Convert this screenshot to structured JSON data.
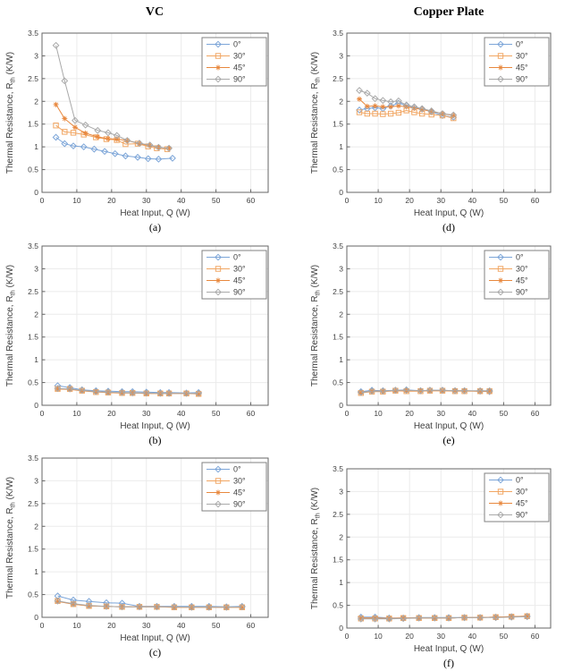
{
  "figure": {
    "background": "#ffffff",
    "columns": [
      {
        "title": "VC"
      },
      {
        "title": "Copper Plate"
      }
    ]
  },
  "styles": {
    "grid_color": "#ebebeb",
    "axis_color": "#666666",
    "text_color": "#3f3f3f",
    "legend_border_color": "#808080",
    "series_styles": [
      {
        "name": "0°",
        "color": "#7ca5d8",
        "marker": "diamond"
      },
      {
        "name": "30°",
        "color": "#f1a663",
        "marker": "square"
      },
      {
        "name": "45°",
        "color": "#e8883e",
        "marker": "asterisk"
      },
      {
        "name": "90°",
        "color": "#a9a9a9",
        "marker": "diamond"
      }
    ]
  },
  "chart_data": [
    {
      "id": "a",
      "label": "(a)",
      "group": "VC",
      "row": 0,
      "col": 0,
      "type": "line",
      "xlabel": "Heat Input, Q (W)",
      "ylabel_parts": {
        "pre": "Thermal Resistance, R",
        "sub": "th",
        "post": " (K/W)"
      },
      "xlim": [
        0,
        65
      ],
      "ylim": [
        0,
        3.5
      ],
      "xticks": [
        0,
        10,
        20,
        30,
        40,
        50,
        60
      ],
      "yticks": [
        0,
        0.5,
        1,
        1.5,
        2,
        2.5,
        3,
        3.5
      ],
      "grid": true,
      "legend_position": "top-right",
      "legend_labels": [
        "0°",
        "30°",
        "45°",
        "90°"
      ],
      "series": [
        {
          "name": "0°",
          "x": [
            4,
            6.5,
            9,
            12,
            15,
            18,
            21,
            24,
            27.5,
            30.5,
            33.5,
            37.5
          ],
          "y": [
            1.21,
            1.07,
            1.02,
            1.0,
            0.95,
            0.9,
            0.85,
            0.8,
            0.77,
            0.74,
            0.73,
            0.75
          ]
        },
        {
          "name": "30°",
          "x": [
            4,
            6.5,
            9,
            12,
            15.5,
            18.5,
            21.5,
            24,
            27.5,
            30.5,
            33,
            36
          ],
          "y": [
            1.47,
            1.33,
            1.31,
            1.27,
            1.21,
            1.17,
            1.15,
            1.06,
            1.07,
            1.01,
            0.97,
            0.95
          ]
        },
        {
          "name": "45°",
          "x": [
            4,
            6.5,
            9.5,
            12.5,
            16,
            19,
            21.5,
            24.5,
            28,
            31,
            33.5,
            36.5
          ],
          "y": [
            1.93,
            1.62,
            1.43,
            1.3,
            1.22,
            1.18,
            1.17,
            1.14,
            1.07,
            1.03,
            0.99,
            0.97
          ]
        },
        {
          "name": "90°",
          "x": [
            4,
            6.5,
            9.5,
            12.5,
            16,
            19,
            21.5,
            24.5,
            28,
            31,
            33.5,
            36.5
          ],
          "y": [
            3.23,
            2.45,
            1.58,
            1.48,
            1.36,
            1.31,
            1.25,
            1.14,
            1.08,
            1.04,
            0.99,
            0.97
          ]
        }
      ]
    },
    {
      "id": "d",
      "label": "(d)",
      "group": "Copper Plate",
      "row": 0,
      "col": 1,
      "type": "line",
      "xlabel": "Heat Input, Q (W)",
      "ylabel_parts": {
        "pre": "Thermal Resistance, R",
        "sub": "th",
        "post": " (K/W)"
      },
      "xlim": [
        0,
        65
      ],
      "ylim": [
        0,
        3.5
      ],
      "xticks": [
        0,
        10,
        20,
        30,
        40,
        50,
        60
      ],
      "yticks": [
        0,
        0.5,
        1,
        1.5,
        2,
        2.5,
        3,
        3.5
      ],
      "grid": true,
      "legend_position": "top-right",
      "legend_labels": [
        "0°",
        "30°",
        "45°",
        "90°"
      ],
      "series": [
        {
          "name": "0°",
          "x": [
            4,
            6.5,
            9,
            11.5,
            14,
            16.5,
            19,
            21.5,
            24,
            27,
            30.5,
            34
          ],
          "y": [
            1.81,
            1.84,
            1.86,
            1.84,
            1.9,
            1.96,
            1.91,
            1.87,
            1.83,
            1.77,
            1.69,
            1.65
          ]
        },
        {
          "name": "30°",
          "x": [
            4,
            6.5,
            9,
            11.5,
            14,
            16.5,
            19,
            21.5,
            24,
            27,
            30.5,
            34
          ],
          "y": [
            1.76,
            1.73,
            1.73,
            1.72,
            1.73,
            1.75,
            1.8,
            1.76,
            1.73,
            1.71,
            1.69,
            1.63
          ]
        },
        {
          "name": "45°",
          "x": [
            4,
            6.5,
            9,
            11.5,
            14,
            16.5,
            19,
            21.5,
            24,
            27,
            30.5,
            34
          ],
          "y": [
            2.05,
            1.89,
            1.9,
            1.88,
            1.88,
            1.9,
            1.88,
            1.85,
            1.82,
            1.78,
            1.73,
            1.69
          ]
        },
        {
          "name": "90°",
          "x": [
            4,
            6.5,
            9,
            11.5,
            14,
            16.5,
            19,
            21.5,
            24,
            27,
            30.5,
            34
          ],
          "y": [
            2.24,
            2.18,
            2.06,
            2.02,
            1.99,
            2.01,
            1.92,
            1.88,
            1.84,
            1.79,
            1.73,
            1.7
          ]
        }
      ]
    },
    {
      "id": "b",
      "label": "(b)",
      "group": "VC",
      "row": 1,
      "col": 0,
      "type": "line",
      "xlabel": "Heat Input, Q (W)",
      "ylabel_parts": {
        "pre": "Thermal Resistance, R",
        "sub": "th",
        "post": " (K/W)"
      },
      "xlim": [
        0,
        65
      ],
      "ylim": [
        0,
        3.5
      ],
      "xticks": [
        0,
        10,
        20,
        30,
        40,
        50,
        60
      ],
      "yticks": [
        0,
        0.5,
        1,
        1.5,
        2,
        2.5,
        3,
        3.5
      ],
      "grid": true,
      "legend_position": "top-right",
      "legend_labels": [
        "0°",
        "30°",
        "45°",
        "90°"
      ],
      "series": [
        {
          "name": "0°",
          "x": [
            4.5,
            8,
            11.5,
            15.5,
            19,
            23,
            26,
            30,
            34,
            36.5,
            41.5,
            45
          ],
          "y": [
            0.43,
            0.39,
            0.34,
            0.32,
            0.31,
            0.3,
            0.3,
            0.29,
            0.28,
            0.28,
            0.27,
            0.28
          ]
        },
        {
          "name": "30°",
          "x": [
            4.5,
            8,
            11.5,
            15.5,
            19,
            23,
            26,
            30,
            34,
            36.5,
            41.5,
            45
          ],
          "y": [
            0.36,
            0.36,
            0.32,
            0.29,
            0.28,
            0.27,
            0.27,
            0.26,
            0.26,
            0.26,
            0.26,
            0.25
          ]
        },
        {
          "name": "45°",
          "x": [
            4.5,
            8,
            11.5,
            15.5,
            19,
            23,
            26,
            30,
            34,
            36.5,
            41.5,
            45
          ],
          "y": [
            0.36,
            0.35,
            0.32,
            0.3,
            0.28,
            0.27,
            0.27,
            0.26,
            0.26,
            0.26,
            0.26,
            0.25
          ]
        },
        {
          "name": "90°",
          "x": [
            4.5,
            8,
            11.5,
            15.5,
            19,
            23,
            26,
            30,
            34,
            36.5,
            41.5,
            45
          ],
          "y": [
            0.37,
            0.36,
            0.33,
            0.3,
            0.29,
            0.28,
            0.27,
            0.27,
            0.26,
            0.26,
            0.26,
            0.26
          ]
        }
      ]
    },
    {
      "id": "e",
      "label": "(e)",
      "group": "Copper Plate",
      "row": 1,
      "col": 1,
      "type": "line",
      "xlabel": "Heat Input, Q (W)",
      "ylabel_parts": {
        "pre": "Thermal Resistance, R",
        "sub": "th",
        "post": " (K/W)"
      },
      "xlim": [
        0,
        65
      ],
      "ylim": [
        0,
        3.5
      ],
      "xticks": [
        0,
        10,
        20,
        30,
        40,
        50,
        60
      ],
      "yticks": [
        0,
        0.5,
        1,
        1.5,
        2,
        2.5,
        3,
        3.5
      ],
      "grid": true,
      "legend_position": "top-right",
      "legend_labels": [
        "0°",
        "30°",
        "45°",
        "90°"
      ],
      "series": [
        {
          "name": "0°",
          "x": [
            4.5,
            8,
            11.5,
            15.5,
            19,
            23.5,
            26.5,
            30.5,
            34.5,
            37.5,
            42.5,
            45.5
          ],
          "y": [
            0.3,
            0.33,
            0.32,
            0.33,
            0.34,
            0.32,
            0.33,
            0.33,
            0.32,
            0.32,
            0.31,
            0.3
          ]
        },
        {
          "name": "30°",
          "x": [
            4.5,
            8,
            11.5,
            15.5,
            19,
            23.5,
            26.5,
            30.5,
            34.5,
            37.5,
            42.5,
            45.5
          ],
          "y": [
            0.27,
            0.3,
            0.3,
            0.32,
            0.31,
            0.31,
            0.32,
            0.32,
            0.31,
            0.31,
            0.31,
            0.31
          ]
        },
        {
          "name": "45°",
          "x": [
            4.5,
            8,
            11.5,
            15.5,
            19,
            23.5,
            26.5,
            30.5,
            34.5,
            37.5,
            42.5,
            45.5
          ],
          "y": [
            0.28,
            0.31,
            0.31,
            0.32,
            0.32,
            0.32,
            0.32,
            0.32,
            0.32,
            0.32,
            0.31,
            0.31
          ]
        },
        {
          "name": "90°",
          "x": [
            4.5,
            8,
            11.5,
            15.5,
            19,
            23.5,
            26.5,
            30.5,
            34.5,
            37.5,
            42.5,
            45.5
          ],
          "y": [
            0.28,
            0.31,
            0.31,
            0.33,
            0.33,
            0.32,
            0.33,
            0.33,
            0.32,
            0.32,
            0.32,
            0.32
          ]
        }
      ]
    },
    {
      "id": "c",
      "label": "(c)",
      "group": "VC",
      "row": 2,
      "col": 0,
      "type": "line",
      "xlabel": "Heat Input, Q (W)",
      "ylabel_parts": {
        "pre": "Thermal Resistance, R",
        "sub": "th",
        "post": " (K/W)"
      },
      "xlim": [
        0,
        65
      ],
      "ylim": [
        0,
        3.5
      ],
      "xticks": [
        0,
        10,
        20,
        30,
        40,
        50,
        60
      ],
      "yticks": [
        0,
        0.5,
        1,
        1.5,
        2,
        2.5,
        3,
        3.5
      ],
      "grid": true,
      "legend_position": "top-right",
      "legend_labels": [
        "0°",
        "30°",
        "45°",
        "90°"
      ],
      "series": [
        {
          "name": "0°",
          "x": [
            4.5,
            9,
            13.5,
            18.5,
            23,
            28,
            33,
            38,
            43,
            48,
            53,
            57.5
          ],
          "y": [
            0.47,
            0.38,
            0.35,
            0.32,
            0.31,
            0.24,
            0.24,
            0.24,
            0.24,
            0.24,
            0.23,
            0.24
          ]
        },
        {
          "name": "30°",
          "x": [
            4.5,
            9,
            13.5,
            18.5,
            23,
            28,
            33,
            38,
            43,
            48,
            53,
            57.5
          ],
          "y": [
            0.36,
            0.29,
            0.25,
            0.24,
            0.23,
            0.23,
            0.23,
            0.22,
            0.22,
            0.22,
            0.22,
            0.22
          ]
        },
        {
          "name": "45°",
          "x": [
            4.5,
            9,
            13.5,
            18.5,
            23,
            28,
            33,
            38,
            43,
            48,
            53,
            57.5
          ],
          "y": [
            0.35,
            0.29,
            0.25,
            0.24,
            0.23,
            0.23,
            0.23,
            0.22,
            0.22,
            0.22,
            0.22,
            0.22
          ]
        },
        {
          "name": "90°",
          "x": [
            4.5,
            9,
            13.5,
            18.5,
            23,
            28,
            33,
            38,
            43,
            48,
            53,
            57.5
          ],
          "y": [
            0.36,
            0.3,
            0.26,
            0.24,
            0.23,
            0.23,
            0.23,
            0.23,
            0.22,
            0.22,
            0.22,
            0.23
          ]
        }
      ]
    },
    {
      "id": "f",
      "label": "(f)",
      "group": "Copper Plate",
      "row": 2,
      "col": 1,
      "type": "line",
      "xlabel": "Heat Input, Q (W)",
      "ylabel_parts": {
        "pre": "Thermal Resistance, R",
        "sub": "th",
        "post": " (K/W)"
      },
      "xlim": [
        0,
        65
      ],
      "ylim": [
        0,
        3.5
      ],
      "xticks": [
        0,
        10,
        20,
        30,
        40,
        50,
        60
      ],
      "yticks": [
        0,
        0.5,
        1,
        1.5,
        2,
        2.5,
        3,
        3.5
      ],
      "grid": true,
      "legend_position": "top-right",
      "legend_labels": [
        "0°",
        "30°",
        "45°",
        "90°"
      ],
      "series": [
        {
          "name": "0°",
          "x": [
            4.5,
            9,
            13.5,
            18,
            23,
            28,
            32.5,
            37.5,
            42.5,
            47.5,
            52.5,
            57.5
          ],
          "y": [
            0.24,
            0.24,
            0.22,
            0.22,
            0.23,
            0.23,
            0.23,
            0.23,
            0.23,
            0.24,
            0.25,
            0.26
          ]
        },
        {
          "name": "30°",
          "x": [
            4.5,
            9,
            13.5,
            18,
            23,
            28,
            32.5,
            37.5,
            42.5,
            47.5,
            52.5,
            57.5
          ],
          "y": [
            0.21,
            0.21,
            0.21,
            0.22,
            0.22,
            0.22,
            0.22,
            0.23,
            0.23,
            0.24,
            0.25,
            0.26
          ]
        },
        {
          "name": "45°",
          "x": [
            4.5,
            9,
            13.5,
            18,
            23,
            28,
            32.5,
            37.5,
            42.5,
            47.5,
            52.5,
            57.5
          ],
          "y": [
            0.22,
            0.22,
            0.21,
            0.22,
            0.22,
            0.22,
            0.22,
            0.23,
            0.23,
            0.24,
            0.25,
            0.26
          ]
        },
        {
          "name": "90°",
          "x": [
            4.5,
            9,
            13.5,
            18,
            23,
            28,
            32.5,
            37.5,
            42.5,
            47.5,
            52.5,
            57.5
          ],
          "y": [
            0.2,
            0.2,
            0.2,
            0.21,
            0.22,
            0.22,
            0.22,
            0.23,
            0.23,
            0.23,
            0.24,
            0.25
          ]
        }
      ]
    }
  ]
}
